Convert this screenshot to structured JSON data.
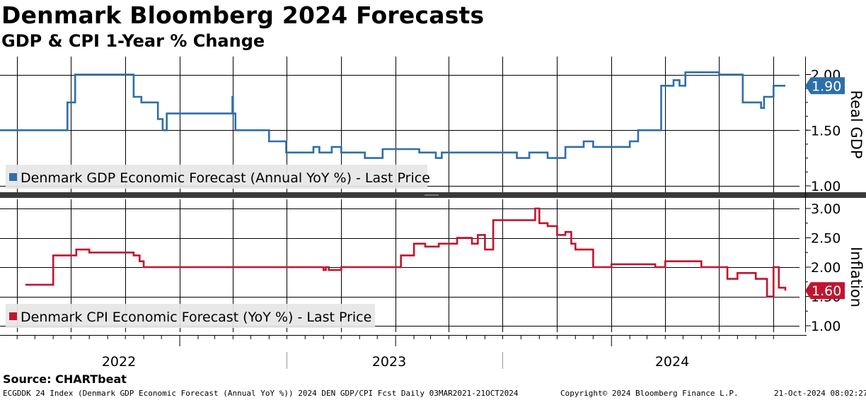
{
  "header": {
    "title": "Denmark Bloomberg 2024 Forecasts",
    "subtitle": "GDP & CPI 1-Year % Change"
  },
  "footer": {
    "source": "Source: CHARTbeat",
    "ticker": "ECGDDK 24 Index (Denmark GDP Economic Forecast (Annual YoY %)) 2024 DEN GDP/CPI Fcst  Daily 03MAR2021-21OCT2024",
    "copyright": "Copyright© 2024 Bloomberg Finance L.P.",
    "timestamp": "21-Oct-2024 08:02:27"
  },
  "colors": {
    "gdp": "#2e6fa8",
    "cpi": "#c01530",
    "grid": "#000000",
    "legend_bg": "#e6e6e6"
  },
  "chart_data": [
    {
      "type": "line",
      "name": "gdp-panel",
      "ylabel": "Real GDP",
      "ylim": [
        0.95,
        2.1
      ],
      "yticks": [
        "1.00",
        "1.50",
        "2.00"
      ],
      "legend": "Denmark GDP Economic Forecast (Annual YoY %) - Last Price",
      "last_value_label": "1.90",
      "last_value": 1.9,
      "xlabels": [
        "2022",
        "2023",
        "2024"
      ],
      "x_range": [
        "2021-03-03",
        "2024-10-21"
      ],
      "series": [
        {
          "name": "Denmark GDP Economic Forecast (Annual YoY %)",
          "x": [
            "2021-03-03",
            "2021-06-25",
            "2021-07-08",
            "2021-07-28",
            "2021-10-15",
            "2021-10-28",
            "2021-11-25",
            "2021-12-03",
            "2021-12-10",
            "2022-03-28",
            "2022-03-31",
            "2022-04-01",
            "2022-04-04",
            "2022-04-05",
            "2022-04-15",
            "2022-06-01",
            "2022-06-30",
            "2022-07-15",
            "2022-08-15",
            "2022-08-25",
            "2022-09-15",
            "2022-10-01",
            "2022-11-01",
            "2022-11-10",
            "2022-12-01",
            "2022-12-10",
            "2023-02-01",
            "2023-02-10",
            "2023-03-01",
            "2023-03-10",
            "2023-03-20",
            "2023-05-15",
            "2023-06-10",
            "2023-07-15",
            "2023-07-25",
            "2023-08-15",
            "2023-09-15",
            "2023-10-15",
            "2023-11-15",
            "2023-12-01",
            "2024-01-01",
            "2024-02-01",
            "2024-02-15",
            "2024-03-25",
            "2024-04-15",
            "2024-04-25",
            "2024-05-01",
            "2024-05-05",
            "2024-05-15",
            "2024-07-01",
            "2024-07-10",
            "2024-08-01",
            "2024-08-10",
            "2024-09-01",
            "2024-09-10",
            "2024-09-15",
            "2024-09-20",
            "2024-10-01",
            "2024-10-21"
          ],
          "y": [
            1.5,
            1.75,
            2.0,
            2.0,
            1.8,
            1.75,
            1.6,
            1.5,
            1.65,
            1.65,
            1.8,
            1.65,
            1.65,
            1.5,
            1.5,
            1.4,
            1.3,
            1.3,
            1.35,
            1.3,
            1.35,
            1.3,
            1.3,
            1.25,
            1.25,
            1.33,
            1.33,
            1.3,
            1.3,
            1.25,
            1.3,
            1.3,
            1.3,
            1.3,
            1.25,
            1.3,
            1.25,
            1.35,
            1.4,
            1.35,
            1.35,
            1.4,
            1.5,
            1.9,
            1.95,
            1.9,
            1.9,
            2.02,
            2.02,
            2.0,
            2.0,
            2.0,
            1.75,
            1.75,
            1.7,
            1.8,
            1.8,
            1.9,
            1.9
          ]
        }
      ]
    },
    {
      "type": "line",
      "name": "cpi-panel",
      "ylabel": "Inflation",
      "ylim": [
        0.9,
        3.1
      ],
      "yticks": [
        "1.00",
        "1.50",
        "2.00",
        "2.50",
        "3.00"
      ],
      "legend": "Denmark CPI Economic Forecast (YoY %) - Last Price",
      "last_value_label": "1.60",
      "last_value": 1.6,
      "x_range": [
        "2021-03-03",
        "2024-10-21"
      ],
      "series": [
        {
          "name": "Denmark CPI Economic Forecast (YoY %)",
          "x": [
            "2021-04-15",
            "2021-05-25",
            "2021-06-01",
            "2021-06-10",
            "2021-07-10",
            "2021-08-01",
            "2021-09-15",
            "2021-10-15",
            "2021-10-25",
            "2021-11-01",
            "2022-08-25",
            "2022-09-01",
            "2022-09-05",
            "2022-09-10",
            "2022-10-01",
            "2022-12-01",
            "2023-01-01",
            "2023-01-10",
            "2023-02-01",
            "2023-02-20",
            "2023-03-15",
            "2023-04-15",
            "2023-05-10",
            "2023-05-20",
            "2023-06-01",
            "2023-06-15",
            "2023-08-15",
            "2023-08-25",
            "2023-09-01",
            "2023-09-15",
            "2023-10-01",
            "2023-10-15",
            "2023-10-25",
            "2023-11-01",
            "2023-12-01",
            "2024-01-01",
            "2024-03-15",
            "2024-04-01",
            "2024-06-01",
            "2024-07-01",
            "2024-07-15",
            "2024-08-01",
            "2024-09-01",
            "2024-09-20",
            "2024-09-25",
            "2024-10-01",
            "2024-10-10",
            "2024-10-21"
          ],
          "y": [
            1.7,
            1.7,
            2.2,
            2.2,
            2.3,
            2.25,
            2.25,
            2.2,
            2.1,
            2.0,
            2.0,
            1.95,
            2.0,
            1.95,
            2.0,
            2.0,
            2.0,
            2.2,
            2.4,
            2.35,
            2.4,
            2.5,
            2.4,
            2.55,
            2.3,
            2.8,
            2.8,
            3.0,
            2.75,
            2.7,
            2.55,
            2.6,
            2.4,
            2.3,
            2.0,
            2.05,
            2.0,
            2.1,
            2.0,
            2.0,
            1.8,
            1.9,
            1.8,
            1.5,
            1.5,
            2.0,
            1.65,
            1.6
          ]
        }
      ]
    }
  ]
}
